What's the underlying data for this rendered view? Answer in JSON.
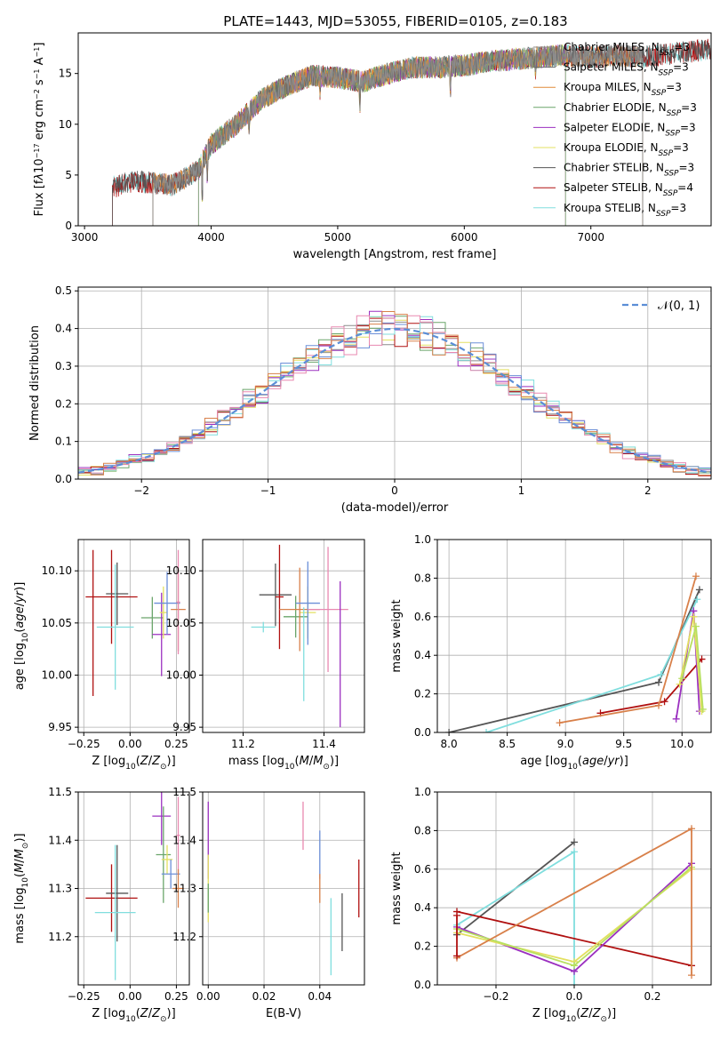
{
  "figure_title": "PLATE=1443, MJD=53055, FIBERID=0105, z=0.183",
  "colors": {
    "Chabrier MILES": "#8c8c8c",
    "Salpeter MILES": "#6a6a6a",
    "Kroupa MILES": "#e08a3a",
    "Chabrier ELODIE": "#6aa56a",
    "Salpeter ELODIE": "#9b30c0",
    "Kroupa ELODIE": "#e3e060",
    "Chabrier STELIB": "#555555",
    "Salpeter STELIB": "#b01010",
    "Kroupa STELIB": "#80dede",
    "blue": "#6b8fd8",
    "pink": "#e888b0",
    "lime": "#b8e060",
    "orange": "#d8804a"
  },
  "chart_data": [
    {
      "id": "spectrum",
      "type": "line",
      "title": "PLATE=1443, MJD=53055, FIBERID=0105, z=0.183",
      "xlabel": "wavelength [Angstrom, rest frame]",
      "ylabel_html": "Flux [f<tspan font-style='italic'>λ</tspan>10<tspan baseline-shift='super' font-size='8'>−17</tspan> erg cm<tspan baseline-shift='super' font-size='8'>−2</tspan> s<tspan baseline-shift='super' font-size='8'>−1</tspan> A<tspan baseline-shift='super' font-size='8'>−1</tspan>]",
      "xlim": [
        2950,
        7950
      ],
      "ylim": [
        0,
        19
      ],
      "xticks": [
        3000,
        4000,
        5000,
        6000,
        7000
      ],
      "yticks": [
        0,
        5,
        10,
        15
      ],
      "continuum_points": [
        [
          3220,
          3.8
        ],
        [
          3400,
          4.4
        ],
        [
          3700,
          4.0
        ],
        [
          3900,
          5.5
        ],
        [
          4000,
          8.0
        ],
        [
          4200,
          10.0
        ],
        [
          4400,
          12.5
        ],
        [
          4600,
          13.8
        ],
        [
          4800,
          14.8
        ],
        [
          5000,
          14.6
        ],
        [
          5200,
          14.2
        ],
        [
          5400,
          15.0
        ],
        [
          5600,
          15.6
        ],
        [
          5800,
          15.6
        ],
        [
          6000,
          15.8
        ],
        [
          6200,
          16.2
        ],
        [
          6400,
          16.4
        ],
        [
          6600,
          16.6
        ],
        [
          6800,
          16.8
        ],
        [
          7000,
          16.6
        ],
        [
          7200,
          16.8
        ],
        [
          7400,
          16.6
        ],
        [
          7950,
          17.4
        ]
      ],
      "absorption_features": [
        [
          3930,
          4.5
        ],
        [
          3970,
          3.5
        ],
        [
          4300,
          2.0
        ],
        [
          4860,
          1.5
        ],
        [
          5175,
          2.5
        ],
        [
          5890,
          3.0
        ],
        [
          6563,
          1.5
        ]
      ],
      "series": [
        {
          "name": "Chabrier MILES",
          "nssp": "3",
          "x_range": [
            3540,
            7410
          ]
        },
        {
          "name": "Salpeter MILES",
          "nssp": "3",
          "x_range": [
            3540,
            7410
          ]
        },
        {
          "name": "Kroupa MILES",
          "nssp": "3",
          "x_range": [
            3540,
            7410
          ]
        },
        {
          "name": "Chabrier ELODIE",
          "nssp": "3",
          "x_range": [
            3900,
            6800
          ]
        },
        {
          "name": "Salpeter ELODIE",
          "nssp": "3",
          "x_range": [
            3900,
            6800
          ]
        },
        {
          "name": "Kroupa ELODIE",
          "nssp": "3",
          "x_range": [
            3900,
            6800
          ]
        },
        {
          "name": "Chabrier STELIB",
          "nssp": "3",
          "x_range": [
            3220,
            7950
          ]
        },
        {
          "name": "Salpeter STELIB",
          "nssp": "4",
          "x_range": [
            3220,
            7950
          ]
        },
        {
          "name": "Kroupa STELIB",
          "nssp": "3",
          "x_range": [
            3220,
            7950
          ]
        }
      ],
      "legend_position": "right"
    },
    {
      "id": "residuals",
      "type": "histogram",
      "xlabel": "(data-model)/error",
      "ylabel": "Normed distribution",
      "xlim": [
        -2.5,
        2.5
      ],
      "ylim": [
        0,
        0.51
      ],
      "xticks": [
        -2,
        -1,
        0,
        1,
        2
      ],
      "yticks": [
        0.0,
        0.1,
        0.2,
        0.3,
        0.4,
        0.5
      ],
      "bin_width": 0.1,
      "grid": true,
      "curve": {
        "label": "𝒩(0, 1)",
        "mean": 0,
        "sigma": 1
      },
      "legend_position": "top-right"
    },
    {
      "id": "age-vs-Z",
      "type": "errorbar",
      "xlabel_html": "Z [log<tspan baseline-shift='sub' font-size='9'>10</tspan>(<tspan font-style='italic'>Z</tspan>/<tspan font-style='italic'>Z</tspan><tspan baseline-shift='sub' font-size='9'>⊙</tspan>)]",
      "ylabel_html": "age  [log<tspan baseline-shift='sub' font-size='9'>10</tspan>(<tspan font-style='italic'>age</tspan>/<tspan font-style='italic'>yr</tspan>)]",
      "xlim": [
        -0.28,
        0.32
      ],
      "ylim": [
        9.945,
        10.13
      ],
      "xticks": [
        -0.25,
        0.0,
        0.25
      ],
      "yticks": [
        9.95,
        10.0,
        10.05,
        10.1
      ],
      "points": [
        {
          "series": "Salpeter STELIB",
          "x": -0.1,
          "xerr": 0.14,
          "y": 10.075,
          "yerr": 0.045
        },
        {
          "series": "Chabrier STELIB",
          "x": -0.07,
          "xerr": 0.06,
          "y": 10.078,
          "yerr": 0.03
        },
        {
          "series": "Kroupa STELIB",
          "x": -0.08,
          "xerr": 0.1,
          "y": 10.046,
          "yerr": 0.06
        },
        {
          "series": "Chabrier ELODIE",
          "x": 0.12,
          "xerr": 0.06,
          "y": 10.055,
          "yerr": 0.02
        },
        {
          "series": "Salpeter ELODIE",
          "x": 0.17,
          "xerr": 0.05,
          "y": 10.039,
          "yerr": 0.04
        },
        {
          "series": "Kroupa ELODIE",
          "x": 0.18,
          "xerr": 0.02,
          "y": 10.06,
          "yerr": 0.025
        },
        {
          "series": "blue",
          "x": 0.2,
          "xerr": 0.07,
          "y": 10.069,
          "yerr": 0.03
        },
        {
          "series": "orange",
          "x": 0.26,
          "xerr": 0.04,
          "y": 10.063,
          "yerr": 0.04
        },
        {
          "series": "pink",
          "x": 0.26,
          "xerr": 0.01,
          "y": 10.07,
          "yerr": 0.05
        },
        {
          "series": "Salpeter STELIB",
          "x": -0.2,
          "xerr": 0.0,
          "y": 10.05,
          "yerr": 0.07
        }
      ]
    },
    {
      "id": "age-vs-mass",
      "type": "errorbar",
      "xlabel_html": "mass [log<tspan baseline-shift='sub' font-size='9'>10</tspan>(<tspan font-style='italic'>M</tspan>/<tspan font-style='italic'>M</tspan><tspan baseline-shift='sub' font-size='9'>⊙</tspan>)]",
      "xlim": [
        11.1,
        11.5
      ],
      "ylim": [
        9.945,
        10.13
      ],
      "xticks": [
        11.2,
        11.4
      ],
      "yticks": [
        9.95,
        10.0,
        10.05,
        10.1
      ],
      "points": [
        {
          "series": "Kroupa STELIB",
          "x": 11.25,
          "xerr": 0.03,
          "y": 10.046,
          "yerr": 0.005
        },
        {
          "series": "Chabrier STELIB",
          "x": 11.28,
          "xerr": 0.04,
          "y": 10.077,
          "yerr": 0.03
        },
        {
          "series": "Salpeter STELIB",
          "x": 11.29,
          "xerr": 0.01,
          "y": 10.075,
          "yerr": 0.05
        },
        {
          "series": "Chabrier ELODIE",
          "x": 11.33,
          "xerr": 0.03,
          "y": 10.056,
          "yerr": 0.02
        },
        {
          "series": "Kroupa ELODIE",
          "x": 11.36,
          "xerr": 0.02,
          "y": 10.06,
          "yerr": 0.025
        },
        {
          "series": "orange",
          "x": 11.34,
          "xerr": 0.05,
          "y": 10.063,
          "yerr": 0.04
        },
        {
          "series": "blue",
          "x": 11.36,
          "xerr": 0.03,
          "y": 10.069,
          "yerr": 0.04
        },
        {
          "series": "pink",
          "x": 11.41,
          "xerr": 0.05,
          "y": 10.063,
          "yerr": 0.06
        },
        {
          "series": "Salpeter ELODIE",
          "x": 11.44,
          "xerr": 0.0,
          "y": 10.02,
          "yerr": 0.07
        },
        {
          "series": "Kroupa STELIB",
          "x": 11.35,
          "xerr": 0.0,
          "y": 10.02,
          "yerr": 0.045
        }
      ]
    },
    {
      "id": "mass-weight-vs-age",
      "type": "line",
      "xlabel_html": "age  [log<tspan baseline-shift='sub' font-size='9'>10</tspan>(<tspan font-style='italic'>age</tspan>/<tspan font-style='italic'>yr</tspan>)]",
      "ylabel": "mass weight",
      "xlim": [
        7.9,
        10.25
      ],
      "ylim": [
        0,
        1
      ],
      "xticks": [
        8.0,
        8.5,
        9.0,
        9.5,
        10.0
      ],
      "yticks": [
        0.0,
        0.2,
        0.4,
        0.6,
        0.8,
        1.0
      ],
      "grid": true,
      "series": [
        {
          "series": "Chabrier STELIB",
          "x": [
            8.0,
            9.8,
            10.15
          ],
          "y": [
            0.0,
            0.26,
            0.74
          ]
        },
        {
          "series": "Kroupa STELIB",
          "x": [
            8.32,
            9.82,
            10.13
          ],
          "y": [
            0.0,
            0.3,
            0.69
          ]
        },
        {
          "series": "Salpeter STELIB",
          "x": [
            9.3,
            9.85,
            10.17
          ],
          "y": [
            0.1,
            0.16,
            0.38
          ]
        },
        {
          "series": "orange",
          "x": [
            8.95,
            9.8,
            10.12
          ],
          "y": [
            0.05,
            0.14,
            0.81
          ]
        },
        {
          "series": "Salpeter ELODIE",
          "x": [
            9.95,
            10.1,
            10.15
          ],
          "y": [
            0.07,
            0.63,
            0.11
          ]
        },
        {
          "series": "Kroupa ELODIE",
          "x": [
            9.98,
            10.1,
            10.17
          ],
          "y": [
            0.25,
            0.6,
            0.11
          ]
        },
        {
          "series": "lime",
          "x": [
            10.0,
            10.12,
            10.18
          ],
          "y": [
            0.28,
            0.55,
            0.12
          ]
        }
      ]
    },
    {
      "id": "mass-vs-Z",
      "type": "errorbar",
      "xlabel_html": "Z [log<tspan baseline-shift='sub' font-size='9'>10</tspan>(<tspan font-style='italic'>Z</tspan>/<tspan font-style='italic'>Z</tspan><tspan baseline-shift='sub' font-size='9'>⊙</tspan>)]",
      "ylabel_html": "mass [log<tspan baseline-shift='sub' font-size='9'>10</tspan>(<tspan font-style='italic'>M</tspan>/<tspan font-style='italic'>M</tspan><tspan baseline-shift='sub' font-size='9'>⊙</tspan>)]",
      "xlim": [
        -0.28,
        0.32
      ],
      "ylim": [
        11.1,
        11.5
      ],
      "xticks": [
        -0.25,
        0.0,
        0.25
      ],
      "yticks": [
        11.2,
        11.3,
        11.4,
        11.5
      ],
      "points": [
        {
          "series": "Salpeter STELIB",
          "x": -0.1,
          "xerr": 0.14,
          "y": 11.28,
          "yerr": 0.07
        },
        {
          "series": "Chabrier STELIB",
          "x": -0.07,
          "xerr": 0.06,
          "y": 11.29,
          "yerr": 0.1
        },
        {
          "series": "Kroupa STELIB",
          "x": -0.08,
          "xerr": 0.11,
          "y": 11.25,
          "yerr": 0.14
        },
        {
          "series": "Salpeter ELODIE",
          "x": 0.17,
          "xerr": 0.05,
          "y": 11.45,
          "yerr": 0.06
        },
        {
          "series": "Chabrier ELODIE",
          "x": 0.18,
          "xerr": 0.04,
          "y": 11.37,
          "yerr": 0.1
        },
        {
          "series": "Kroupa ELODIE",
          "x": 0.2,
          "xerr": 0.03,
          "y": 11.36,
          "yerr": 0.03
        },
        {
          "series": "blue",
          "x": 0.22,
          "xerr": 0.05,
          "y": 11.33,
          "yerr": 0.03
        },
        {
          "series": "pink",
          "x": 0.26,
          "xerr": 0.01,
          "y": 11.41,
          "yerr": 0.08
        },
        {
          "series": "orange",
          "x": 0.26,
          "xerr": 0.03,
          "y": 11.3,
          "yerr": 0.04
        }
      ]
    },
    {
      "id": "mass-vs-ebv",
      "type": "errorbar",
      "xlabel": "E(B-V)",
      "xlim": [
        -0.002,
        0.056
      ],
      "ylim": [
        11.1,
        11.5
      ],
      "xticks": [
        0.0,
        0.02,
        0.04
      ],
      "yticks": [
        11.2,
        11.3,
        11.4,
        11.5
      ],
      "points": [
        {
          "series": "Salpeter ELODIE",
          "x": 0.0,
          "xerr": 0.0,
          "y": 11.4,
          "yerr": 0.08
        },
        {
          "series": "Kroupa ELODIE",
          "x": 0.0,
          "xerr": 0.0,
          "y": 11.3,
          "yerr": 0.07
        },
        {
          "series": "Chabrier ELODIE",
          "x": 0.0,
          "xerr": 0.0,
          "y": 11.28,
          "yerr": 0.03
        },
        {
          "series": "pink",
          "x": 0.034,
          "xerr": 0.0,
          "y": 11.43,
          "yerr": 0.05
        },
        {
          "series": "blue",
          "x": 0.04,
          "xerr": 0.0,
          "y": 11.37,
          "yerr": 0.05
        },
        {
          "series": "orange",
          "x": 0.04,
          "xerr": 0.0,
          "y": 11.3,
          "yerr": 0.03
        },
        {
          "series": "Kroupa STELIB",
          "x": 0.044,
          "xerr": 0.0,
          "y": 11.2,
          "yerr": 0.08
        },
        {
          "series": "Chabrier STELIB",
          "x": 0.048,
          "xerr": 0.0,
          "y": 11.23,
          "yerr": 0.06
        },
        {
          "series": "Salpeter STELIB",
          "x": 0.054,
          "xerr": 0.0,
          "y": 11.3,
          "yerr": 0.06
        }
      ]
    },
    {
      "id": "mass-weight-vs-Z",
      "type": "line",
      "xlabel_html": "Z [log<tspan baseline-shift='sub' font-size='9'>10</tspan>(<tspan font-style='italic'>Z</tspan>/<tspan font-style='italic'>Z</tspan><tspan baseline-shift='sub' font-size='9'>⊙</tspan>)]",
      "ylabel": "mass weight",
      "xlim": [
        -0.35,
        0.35
      ],
      "ylim": [
        0,
        1
      ],
      "xticks": [
        -0.2,
        0.0,
        0.2
      ],
      "yticks": [
        0.0,
        0.2,
        0.4,
        0.6,
        0.8,
        1.0
      ],
      "grid": true,
      "series": [
        {
          "series": "Chabrier STELIB",
          "x": [
            -0.3,
            0.0
          ],
          "y": [
            0.26,
            0.74
          ]
        },
        {
          "series": "Kroupa STELIB",
          "x": [
            -0.3,
            0.0,
            0.0
          ],
          "y": [
            0.31,
            0.69,
            0.0
          ]
        },
        {
          "series": "Salpeter STELIB",
          "x": [
            -0.3,
            0.3
          ],
          "y": [
            0.38,
            0.1
          ]
        },
        {
          "series": "Salpeter ELODIE",
          "x": [
            -0.3,
            0.0,
            0.3
          ],
          "y": [
            0.3,
            0.07,
            0.63
          ]
        },
        {
          "series": "Kroupa ELODIE",
          "x": [
            -0.3,
            0.0,
            0.3
          ],
          "y": [
            0.27,
            0.12,
            0.6
          ]
        },
        {
          "series": "lime",
          "x": [
            -0.3,
            0.0,
            0.3
          ],
          "y": [
            0.29,
            0.1,
            0.61
          ]
        },
        {
          "series": "orange",
          "x": [
            -0.3,
            0.3,
            0.3
          ],
          "y": [
            0.14,
            0.81,
            0.05
          ]
        },
        {
          "series": "Salpeter STELIB",
          "x": [
            -0.3,
            -0.3
          ],
          "y": [
            0.36,
            0.15
          ]
        }
      ]
    }
  ]
}
